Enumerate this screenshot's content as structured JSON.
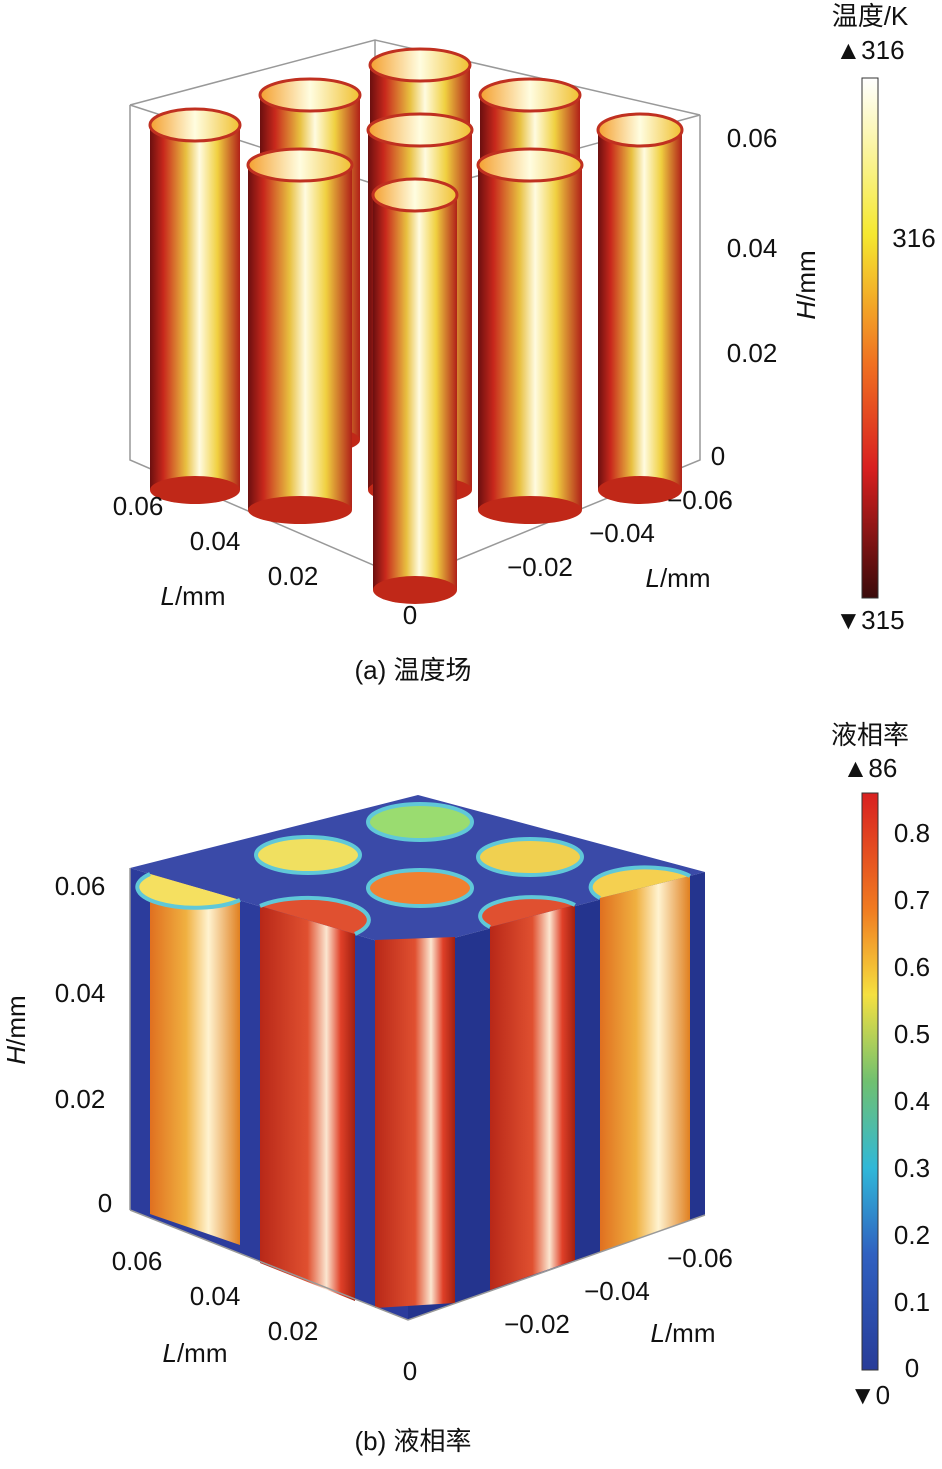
{
  "panels": [
    {
      "caption": "(a) 温度场",
      "colorbar": {
        "title": "温度/K",
        "max_label": "▲316",
        "min_label": "▼315",
        "ticks": [
          "316"
        ]
      },
      "h_axis": {
        "label_var": "H",
        "label_unit": "/mm",
        "ticks": [
          "0.06",
          "0.04",
          "0.02",
          "0"
        ]
      },
      "l_axis_left": {
        "label_var": "L",
        "label_unit": "/mm",
        "ticks": [
          "0.06",
          "0.04",
          "0.02",
          "0"
        ]
      },
      "l_axis_right": {
        "label_var": "L",
        "label_unit": "/mm",
        "ticks": [
          "−0.06",
          "−0.04",
          "−0.02"
        ]
      }
    },
    {
      "caption": "(b) 液相率",
      "colorbar": {
        "title": "液相率",
        "max_label": "▲86",
        "min_label": "▼0",
        "ticks": [
          "0.8",
          "0.7",
          "0.6",
          "0.5",
          "0.4",
          "0.3",
          "0.2",
          "0.1",
          "0"
        ]
      },
      "h_axis": {
        "label_var": "H",
        "label_unit": "/mm",
        "ticks": [
          "0.06",
          "0.04",
          "0.02",
          "0"
        ]
      },
      "l_axis_left": {
        "label_var": "L",
        "label_unit": "/mm",
        "ticks": [
          "0.06",
          "0.04",
          "0.02",
          "0"
        ]
      },
      "l_axis_right": {
        "label_var": "L",
        "label_unit": "/mm",
        "ticks": [
          "−0.06",
          "−0.04",
          "−0.02"
        ]
      }
    }
  ]
}
